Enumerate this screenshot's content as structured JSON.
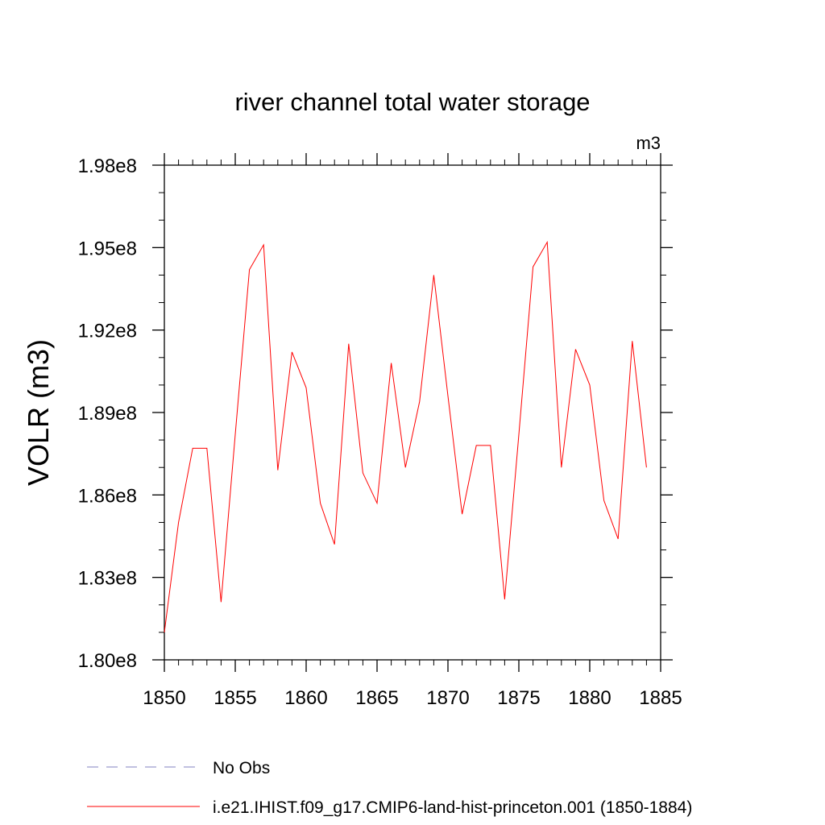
{
  "chart_data": {
    "type": "line",
    "title": "river channel total water storage",
    "units_label": "m3",
    "ylabel": "VOLR  (m3)",
    "xlabel": "",
    "xlim": [
      1850,
      1885
    ],
    "ylim": [
      180000000.0,
      198000000.0
    ],
    "x_ticks": [
      1850,
      1855,
      1860,
      1865,
      1870,
      1875,
      1880,
      1885
    ],
    "x_tick_labels": [
      "1850",
      "1855",
      "1860",
      "1865",
      "1870",
      "1875",
      "1880",
      "1885"
    ],
    "y_ticks": [
      180000000.0,
      183000000.0,
      186000000.0,
      189000000.0,
      192000000.0,
      195000000.0,
      198000000.0
    ],
    "y_tick_labels": [
      "1.80e8",
      "1.83e8",
      "1.86e8",
      "1.89e8",
      "1.92e8",
      "1.95e8",
      "1.98e8"
    ],
    "grid": false,
    "legend_position": "bottom",
    "series": [
      {
        "name": "No Obs",
        "color": "#8080c0",
        "dash": "dashed",
        "x": [],
        "values": []
      },
      {
        "name": "i.e21.IHIST.f09_g17.CMIP6-land-hist-princeton.001 (1850-1884)",
        "color": "#ff0000",
        "dash": "solid",
        "x": [
          1850,
          1851,
          1852,
          1853,
          1854,
          1855,
          1856,
          1857,
          1858,
          1859,
          1860,
          1861,
          1862,
          1863,
          1864,
          1865,
          1866,
          1867,
          1868,
          1869,
          1870,
          1871,
          1872,
          1873,
          1874,
          1875,
          1876,
          1877,
          1878,
          1879,
          1880,
          1881,
          1882,
          1883,
          1884
        ],
        "values": [
          181000000.0,
          185000000.0,
          187700000.0,
          187700000.0,
          182100000.0,
          188200000.0,
          194200000.0,
          195100000.0,
          186900000.0,
          191200000.0,
          189900000.0,
          185700000.0,
          184200000.0,
          191500000.0,
          186800000.0,
          185700000.0,
          190800000.0,
          187000000.0,
          189400000.0,
          194000000.0,
          189600000.0,
          185300000.0,
          187800000.0,
          187800000.0,
          182200000.0,
          188200000.0,
          194300000.0,
          195200000.0,
          187000000.0,
          191300000.0,
          190000000.0,
          185800000.0,
          184400000.0,
          191600000.0,
          187000000.0
        ]
      }
    ]
  }
}
